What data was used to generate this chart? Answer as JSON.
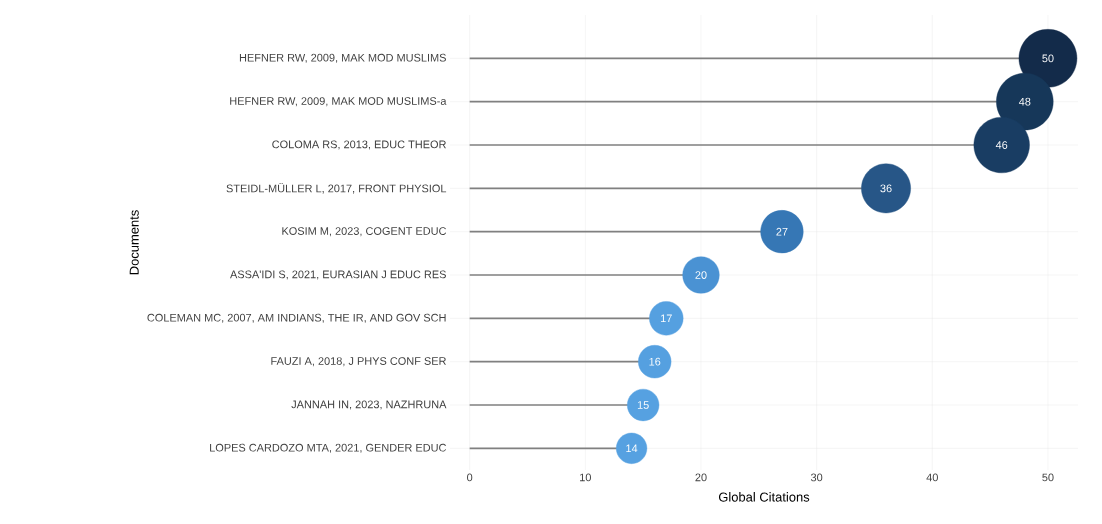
{
  "chart_data": {
    "type": "lollipop",
    "orientation": "horizontal",
    "xlabel": "Global Citations",
    "ylabel": "Documents",
    "categories": [
      "HEFNER RW, 2009, MAK MOD MUSLIMS",
      "HEFNER RW, 2009, MAK MOD MUSLIMS-a",
      "COLOMA RS, 2013, EDUC THEOR",
      "STEIDL-MÜLLER L, 2017, FRONT PHYSIOL",
      "KOSIM M, 2023, COGENT EDUC",
      "ASSA'IDI S, 2021, EURASIAN J EDUC RES",
      "COLEMAN MC, 2007, AM INDIANS, THE IR, AND GOV SCH",
      "FAUZI A, 2018, J PHYS CONF SER",
      "JANNAH IN, 2023, NAZHRUNA",
      "LOPES CARDOZO MTA, 2021, GENDER EDUC"
    ],
    "values": [
      50,
      48,
      46,
      36,
      27,
      20,
      17,
      16,
      15,
      14
    ],
    "sizes": [
      1,
      0.96,
      0.92,
      0.72,
      0.54,
      0.4,
      0.34,
      0.32,
      0.3,
      0.28
    ],
    "colors": [
      "#132b4a",
      "#163759",
      "#193d63",
      "#275687",
      "#3677b5",
      "#4a92d3",
      "#55a0e0",
      "#55a0e0",
      "#56a1e1",
      "#56a1e1"
    ],
    "data_labels": true,
    "grid": true,
    "marker": "circle",
    "xlim": [
      -1.7,
      52.6
    ],
    "xticks": [
      0,
      10,
      20,
      30,
      40,
      50
    ]
  }
}
